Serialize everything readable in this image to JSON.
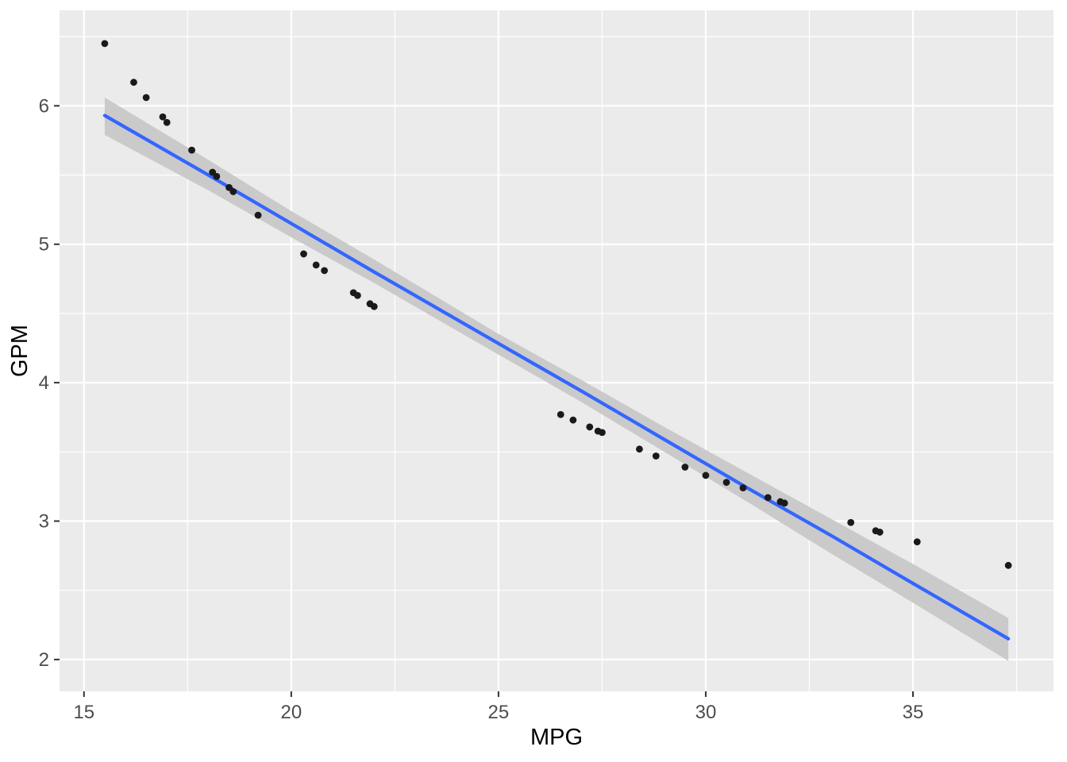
{
  "chart_data": {
    "type": "scatter",
    "title": "",
    "xlabel": "MPG",
    "ylabel": "GPM",
    "xlim": [
      14.41,
      38.39
    ],
    "ylim": [
      1.77,
      6.69
    ],
    "x_ticks": [
      15,
      20,
      25,
      30,
      35
    ],
    "y_ticks": [
      2,
      3,
      4,
      5,
      6
    ],
    "x_minor_ticks": [
      17.5,
      22.5,
      27.5,
      32.5,
      37.5
    ],
    "y_minor_ticks": [
      2.5,
      3.5,
      4.5,
      5.5,
      6.5
    ],
    "grid": "on",
    "legend": "none",
    "points": [
      [
        15.5,
        6.45
      ],
      [
        16.2,
        6.17
      ],
      [
        16.5,
        6.06
      ],
      [
        16.9,
        5.92
      ],
      [
        17.0,
        5.88
      ],
      [
        17.6,
        5.68
      ],
      [
        18.1,
        5.52
      ],
      [
        18.2,
        5.49
      ],
      [
        18.5,
        5.41
      ],
      [
        18.6,
        5.38
      ],
      [
        19.2,
        5.21
      ],
      [
        20.3,
        4.93
      ],
      [
        20.6,
        4.85
      ],
      [
        20.8,
        4.81
      ],
      [
        21.5,
        4.65
      ],
      [
        21.6,
        4.63
      ],
      [
        21.9,
        4.57
      ],
      [
        22.0,
        4.55
      ],
      [
        26.5,
        3.77
      ],
      [
        26.8,
        3.73
      ],
      [
        27.2,
        3.68
      ],
      [
        27.4,
        3.65
      ],
      [
        27.5,
        3.64
      ],
      [
        28.4,
        3.52
      ],
      [
        28.8,
        3.47
      ],
      [
        29.5,
        3.39
      ],
      [
        30.0,
        3.33
      ],
      [
        30.5,
        3.28
      ],
      [
        30.9,
        3.24
      ],
      [
        31.5,
        3.17
      ],
      [
        31.8,
        3.14
      ],
      [
        31.9,
        3.13
      ],
      [
        33.5,
        2.99
      ],
      [
        34.1,
        2.93
      ],
      [
        34.2,
        2.92
      ],
      [
        35.1,
        2.85
      ],
      [
        37.3,
        2.68
      ]
    ],
    "smooth_line": {
      "type": "linear-fit",
      "x": [
        15.5,
        18.0,
        20.0,
        22.0,
        24.9,
        27.0,
        29.0,
        31.0,
        33.0,
        35.0,
        37.3
      ],
      "y": [
        5.93,
        5.5,
        5.15,
        4.8,
        4.3,
        3.94,
        3.59,
        3.24,
        2.9,
        2.55,
        2.15
      ]
    },
    "confidence_band": {
      "x": [
        15.5,
        18.0,
        20.0,
        22.0,
        24.9,
        27.0,
        29.0,
        31.0,
        33.0,
        35.0,
        37.3
      ],
      "upper": [
        6.06,
        5.61,
        5.24,
        4.89,
        4.37,
        4.02,
        3.68,
        3.35,
        3.02,
        2.69,
        2.3
      ],
      "lower": [
        5.79,
        5.39,
        5.05,
        4.72,
        4.22,
        3.86,
        3.5,
        3.14,
        2.77,
        2.41,
        1.99
      ]
    },
    "colors": {
      "figure_background": "#FFFFFF",
      "panel_background": "#EBEBEB",
      "gridline": "#FFFFFF",
      "point": "#1A1A1A",
      "smooth_line": "#3366FF",
      "confidence_band": "#CACACA",
      "tick_mark": "#333333",
      "tick_label": "#4D4D4D",
      "axis_title": "#000000"
    }
  }
}
